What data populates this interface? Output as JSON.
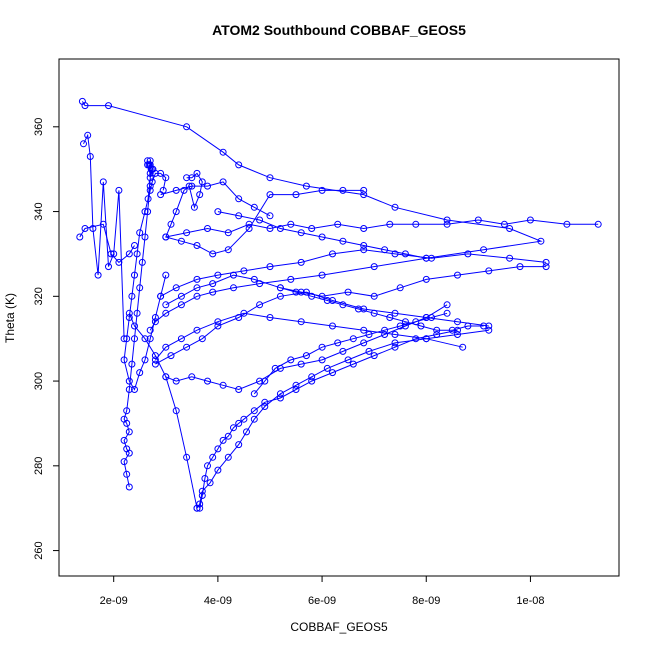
{
  "chart_data": {
    "type": "line",
    "title": "ATOM2 Southbound COBBAF_GEOS5",
    "xlabel": "COBBAF_GEOS5",
    "ylabel": "Theta (K)",
    "xlim": [
      9.5e-10,
      1.17e-08
    ],
    "ylim": [
      254,
      376
    ],
    "x_ticks": [
      {
        "value": 2e-09,
        "label": "2e-09"
      },
      {
        "value": 4e-09,
        "label": "4e-09"
      },
      {
        "value": 6e-09,
        "label": "6e-09"
      },
      {
        "value": 8e-09,
        "label": "8e-09"
      },
      {
        "value": 1e-08,
        "label": "1e-08"
      }
    ],
    "y_ticks": [
      {
        "value": 260,
        "label": "260"
      },
      {
        "value": 280,
        "label": "280"
      },
      {
        "value": 300,
        "label": "300"
      },
      {
        "value": 320,
        "label": "320"
      },
      {
        "value": 340,
        "label": "340"
      },
      {
        "value": 360,
        "label": "360"
      }
    ],
    "grid": false,
    "marker": "open-circle",
    "color": "#0000ff",
    "series": [
      {
        "x": [
          1.4e-09,
          1.45e-09,
          1.9e-09,
          3.4e-09,
          4.1e-09,
          4.4e-09,
          5e-09,
          5.7e-09,
          6.8e-09,
          7.4e-09,
          8.4e-09,
          9.6e-09,
          1.02e-08,
          9.1e-09,
          8e-09,
          7e-09,
          6e-09,
          5.4e-09,
          4.8e-09,
          4.3e-09,
          3.9e-09,
          3.6e-09,
          3.3e-09,
          3e-09,
          2.8e-09,
          2.7e-09
        ],
        "y": [
          366,
          365,
          365,
          360,
          354,
          351,
          348,
          346,
          344,
          341,
          338,
          336,
          333,
          331,
          329,
          327,
          325,
          324,
          323,
          322,
          321,
          320,
          318,
          316,
          314,
          312
        ]
      },
      {
        "x": [
          2.7e-09,
          2.65e-09,
          2.6e-09,
          2.55e-09,
          2.5e-09,
          2.45e-09,
          2.4e-09,
          2.35e-09,
          2.3e-09,
          2.25e-09,
          2.2e-09,
          2.25e-09,
          2.3e-09,
          2.2e-09,
          2.25e-09,
          2.3e-09,
          2.2e-09,
          2.25e-09,
          2.3e-09
        ],
        "y": [
          346,
          340,
          334,
          328,
          322,
          316,
          310,
          304,
          298,
          293,
          291,
          290,
          288,
          286,
          284,
          283,
          281,
          278,
          275
        ]
      },
      {
        "x": [
          2.65e-09,
          2.7e-09,
          2.75e-09,
          2.7e-09,
          2.65e-09,
          2.7e-09,
          2.75e-09,
          2.7e-09,
          2.68e-09,
          2.72e-09,
          2.66e-09,
          2.74e-09,
          2.8e-09,
          2.9e-09,
          3e-09,
          2.95e-09
        ],
        "y": [
          352,
          351,
          350,
          349,
          351,
          352,
          350,
          348,
          351,
          350,
          343,
          347,
          349,
          349,
          348,
          345
        ]
      },
      {
        "x": [
          2.7e-09,
          2.6e-09,
          2.5e-09,
          2.45e-09,
          2.4e-09,
          2.35e-09,
          2.3e-09,
          2.25e-09,
          2.2e-09,
          2.3e-09,
          2.4e-09,
          2.5e-09,
          2.6e-09,
          2.7e-09,
          2.8e-09,
          2.9e-09,
          3e-09
        ],
        "y": [
          345,
          340,
          335,
          330,
          325,
          320,
          315,
          310,
          305,
          300,
          298,
          302,
          305,
          310,
          315,
          320,
          325
        ]
      },
      {
        "x": [
          1.42e-09,
          1.5e-09,
          1.55e-09,
          1.6e-09,
          1.7e-09,
          1.8e-09,
          1.9e-09,
          2e-09,
          2.1e-09,
          2.2e-09
        ],
        "y": [
          356,
          358,
          353,
          336,
          325,
          347,
          327,
          330,
          345,
          310
        ]
      },
      {
        "x": [
          1.35e-09,
          1.45e-09,
          1.8e-09,
          1.95e-09,
          2.1e-09,
          2.3e-09,
          2.4e-09
        ],
        "y": [
          334,
          336,
          337,
          330,
          328,
          330,
          332
        ]
      },
      {
        "x": [
          3.4e-09,
          3.5e-09,
          3.6e-09,
          3.7e-09,
          3.65e-09,
          3.55e-09,
          3.45e-09,
          3.35e-09,
          3.2e-09,
          3.1e-09,
          3e-09,
          3.3e-09,
          3.6e-09,
          3.9e-09,
          4.2e-09,
          4.6e-09,
          5e-09,
          5.5e-09,
          6e-09,
          6.4e-09,
          6.8e-09
        ],
        "y": [
          348,
          348,
          349,
          347,
          344,
          341,
          346,
          345,
          340,
          337,
          334,
          333,
          332,
          330,
          331,
          336,
          344,
          344,
          345,
          345,
          345
        ]
      },
      {
        "x": [
          3e-09,
          3.4e-09,
          3.8e-09,
          4.2e-09,
          4.6e-09,
          5e-09,
          5.4e-09,
          5.8e-09,
          6.3e-09,
          6.8e-09,
          7.3e-09,
          7.8e-09,
          8.4e-09,
          9e-09,
          9.5e-09,
          1e-08,
          1.07e-08,
          1.13e-08
        ],
        "y": [
          334,
          335,
          336,
          335,
          337,
          336,
          337,
          336,
          337,
          336,
          337,
          337,
          337,
          338,
          337,
          338,
          337,
          337
        ]
      },
      {
        "x": [
          3e-09,
          3.3e-09,
          3.6e-09,
          3.9e-09,
          4.3e-09,
          4.7e-09,
          5.2e-09,
          5.6e-09,
          6e-09,
          6.5e-09,
          7e-09,
          7.5e-09,
          8e-09,
          8.6e-09,
          9.2e-09,
          9.8e-09,
          1.03e-08
        ],
        "y": [
          318,
          320,
          322,
          323,
          325,
          324,
          322,
          321,
          320,
          321,
          320,
          322,
          324,
          325,
          326,
          327,
          327
        ]
      },
      {
        "x": [
          1.03e-08,
          9.6e-09,
          8.8e-09,
          8.1e-09,
          7.4e-09,
          6.8e-09,
          6.2e-09,
          5.6e-09,
          5e-09,
          4.5e-09,
          4e-09,
          3.6e-09,
          3.2e-09,
          2.9e-09
        ],
        "y": [
          328,
          329,
          330,
          329,
          330,
          331,
          330,
          328,
          327,
          326,
          325,
          324,
          322,
          320
        ]
      },
      {
        "x": [
          2.8e-09,
          3.1e-09,
          3.4e-09,
          3.7e-09,
          4e-09,
          4.4e-09,
          4.8e-09,
          5.2e-09,
          5.7e-09,
          6.2e-09,
          6.8e-09,
          7.4e-09,
          8e-09,
          8.6e-09,
          9.2e-09
        ],
        "y": [
          304,
          306,
          308,
          310,
          313,
          315,
          318,
          320,
          321,
          319,
          317,
          316,
          315,
          314,
          313
        ]
      },
      {
        "x": [
          9.2e-09,
          8.6e-09,
          8e-09,
          7.4e-09,
          6.8e-09,
          6.2e-09,
          5.6e-09,
          5e-09,
          4.5e-09,
          4e-09,
          3.6e-09,
          3.3e-09,
          3e-09,
          2.8e-09
        ],
        "y": [
          312,
          311,
          310,
          311,
          312,
          313,
          314,
          315,
          316,
          314,
          312,
          310,
          308,
          305
        ]
      },
      {
        "x": [
          3.65e-09,
          3.7e-09,
          3.75e-09,
          3.8e-09,
          3.9e-09,
          4e-09,
          4.1e-09,
          4.2e-09,
          4.3e-09,
          4.4e-09,
          4.5e-09,
          4.7e-09,
          4.9e-09,
          5.2e-09,
          5.5e-09,
          5.8e-09,
          6.2e-09,
          6.6e-09,
          7e-09,
          7.4e-09,
          7.8e-09,
          8.2e-09,
          8.6e-09
        ],
        "y": [
          270,
          273,
          277,
          280,
          282,
          284,
          286,
          287,
          289,
          290,
          291,
          293,
          295,
          296,
          298,
          300,
          302,
          304,
          306,
          308,
          310,
          311,
          312
        ]
      },
      {
        "x": [
          3.6e-09,
          3.65e-09,
          3.7e-09,
          3.85e-09,
          4e-09,
          4.2e-09,
          4.4e-09,
          4.55e-09,
          4.7e-09,
          4.9e-09,
          5.2e-09,
          5.5e-09,
          5.8e-09,
          6.1e-09,
          6.5e-09,
          6.9e-09,
          7.4e-09,
          8e-09,
          8.7e-09
        ],
        "y": [
          270,
          271,
          274,
          276,
          279,
          282,
          285,
          288,
          291,
          294,
          297,
          299,
          301,
          303,
          305,
          307,
          309,
          310,
          308
        ]
      },
      {
        "x": [
          3.6e-09,
          3.4e-09,
          3.2e-09,
          3e-09,
          2.8e-09,
          2.6e-09,
          2.4e-09,
          2.3e-09
        ],
        "y": [
          270,
          282,
          293,
          301,
          306,
          310,
          313,
          316
        ]
      },
      {
        "x": [
          4.7e-09,
          4.9e-09,
          5.1e-09,
          5.4e-09,
          5.7e-09,
          6e-09,
          6.3e-09,
          6.6e-09,
          6.9e-09,
          7.2e-09,
          7.5e-09,
          7.8e-09,
          8.1e-09,
          8.4e-09
        ],
        "y": [
          297,
          300,
          303,
          305,
          306,
          308,
          309,
          310,
          311,
          312,
          313,
          314,
          315,
          316
        ]
      },
      {
        "x": [
          3e-09,
          3.2e-09,
          3.5e-09,
          3.8e-09,
          4.1e-09,
          4.4e-09,
          4.8e-09,
          5.2e-09,
          5.6e-09,
          6e-09,
          6.4e-09,
          6.8e-09,
          7.2e-09,
          7.6e-09,
          8e-09,
          8.4e-09
        ],
        "y": [
          301,
          300,
          301,
          300,
          299,
          298,
          300,
          303,
          304,
          305,
          307,
          309,
          311,
          313,
          315,
          318
        ]
      },
      {
        "x": [
          5.2e-09,
          5.5e-09,
          5.8e-09,
          6.1e-09,
          6.4e-09,
          6.7e-09,
          7e-09,
          7.3e-09,
          7.6e-09,
          7.9e-09,
          8.2e-09,
          8.5e-09,
          8.8e-09,
          9.1e-09
        ],
        "y": [
          322,
          321,
          320,
          319,
          318,
          317,
          316,
          315,
          314,
          313,
          312,
          312,
          313,
          313
        ]
      },
      {
        "x": [
          4e-09,
          4.4e-09,
          4.8e-09,
          5.2e-09,
          5.6e-09,
          6e-09,
          6.4e-09,
          6.8e-09,
          7.2e-09,
          7.6e-09,
          8e-09
        ],
        "y": [
          340,
          339,
          338,
          336,
          335,
          334,
          333,
          332,
          331,
          330,
          329
        ]
      },
      {
        "x": [
          2.9e-09,
          3.2e-09,
          3.5e-09,
          3.8e-09,
          4.1e-09,
          4.4e-09,
          4.7e-09,
          5e-09
        ],
        "y": [
          344,
          345,
          346,
          346,
          347,
          343,
          341,
          339
        ]
      }
    ]
  }
}
